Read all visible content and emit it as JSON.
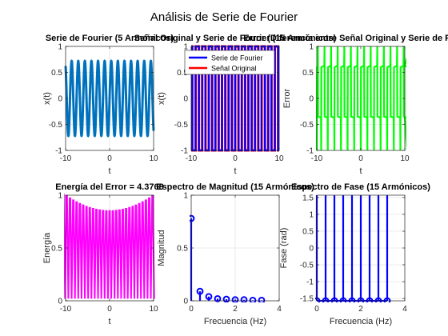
{
  "figure": {
    "title": "Análisis de Serie de Fourier"
  },
  "colors": {
    "blue": "#0072BD",
    "pure_blue": "#0000FF",
    "red": "#FF0000",
    "green": "#00FF00",
    "magenta": "#FF00FF",
    "grid": "#dcdcdc"
  },
  "chart_data": [
    {
      "id": "p1",
      "type": "line",
      "title": "Serie de Fourier (5 Armónicos)",
      "xlabel": "t",
      "ylabel": "x(t)",
      "xlim": [
        -10,
        10
      ],
      "ylim": [
        -1,
        1
      ],
      "xticks": [
        -10,
        0,
        10
      ],
      "yticks": [
        -1,
        -0.5,
        0,
        0.5,
        1
      ],
      "xtick_labels": [
        "-10",
        "0",
        "10"
      ],
      "ytick_labels": [
        "-1",
        "-0.5",
        "0",
        "0.5",
        "1"
      ],
      "grid": true,
      "series": [
        {
          "kind": "sine",
          "color": "#0072BD",
          "amplitude": 0.72,
          "period": 1.5
        }
      ]
    },
    {
      "id": "p2",
      "type": "line",
      "title": "Señal Original y Serie de Fourier (15 Armónicos)",
      "xlabel": "t",
      "ylabel": "x(t)",
      "xlim": [
        -10,
        10
      ],
      "ylim": [
        -1,
        1
      ],
      "xticks": [
        -10,
        0,
        10
      ],
      "yticks": [
        -1,
        -0.5,
        0,
        0.5,
        1
      ],
      "xtick_labels": [
        "-10",
        "0",
        "10"
      ],
      "ytick_labels": [
        "-1",
        "-0.5",
        "0",
        "0.5",
        "1"
      ],
      "grid": true,
      "legend": {
        "position": "top-right",
        "entries": [
          "Serie de Fourier",
          "Señal Original"
        ]
      },
      "series": [
        {
          "name": "Señal Original",
          "kind": "square",
          "color": "#FF0000",
          "amplitude": 1,
          "period": 1.5
        },
        {
          "name": "Serie de Fourier",
          "kind": "square",
          "color": "#0000FF",
          "amplitude": 1,
          "period": 1.5
        }
      ]
    },
    {
      "id": "p3",
      "type": "line",
      "title": "Error (Diferencia entre Señal Original y Serie de Fourier)",
      "xlabel": "t",
      "ylabel": "Error",
      "xlim": [
        -10,
        10
      ],
      "ylim": [
        -1,
        1
      ],
      "xticks": [
        -10,
        0,
        10
      ],
      "yticks": [
        -1,
        -0.5,
        0,
        0.5,
        1
      ],
      "xtick_labels": [
        "-10",
        "0",
        "10"
      ],
      "ytick_labels": [
        "-1",
        "-0.5",
        "0",
        "0.5",
        "1"
      ],
      "grid": true,
      "series": [
        {
          "kind": "error",
          "color": "#00FF00",
          "high": 0.6,
          "low": -0.35,
          "period": 1.5
        }
      ]
    },
    {
      "id": "p4",
      "type": "line",
      "title": "Energía del Error = 4.3768",
      "xlabel": "t",
      "ylabel": "Energía",
      "xlim": [
        -10,
        10
      ],
      "ylim": [
        0,
        1
      ],
      "xticks": [
        -10,
        0,
        10
      ],
      "yticks": [
        0,
        0.5,
        1
      ],
      "xtick_labels": [
        "-10",
        "0",
        "10"
      ],
      "ytick_labels": [
        "0",
        "0.5",
        "1"
      ],
      "grid": true,
      "series": [
        {
          "kind": "energy",
          "color": "#FF00FF",
          "period": 0.75,
          "peak_edge": 1.0,
          "peak_center": 0.85
        }
      ]
    },
    {
      "id": "p5",
      "type": "stem",
      "title": "Espectro de Magnitud (15 Armónicos)",
      "xlabel": "Frecuencia (Hz)",
      "ylabel": "Magnitud",
      "xlim": [
        0,
        4
      ],
      "ylim": [
        0,
        1
      ],
      "xticks": [
        0,
        2,
        4
      ],
      "yticks": [
        0,
        0.5,
        1
      ],
      "xtick_labels": [
        "0",
        "2",
        "4"
      ],
      "ytick_labels": [
        "0",
        "0.5",
        "1"
      ],
      "grid": true,
      "series": [
        {
          "color": "#0000FF",
          "x": [
            0,
            0.4,
            0.8,
            1.2,
            1.6,
            2.0,
            2.4,
            2.8,
            3.2
          ],
          "values": [
            0.78,
            0.09,
            0.04,
            0.02,
            0.015,
            0.01,
            0.01,
            0.005,
            0.005
          ]
        }
      ]
    },
    {
      "id": "p6",
      "type": "stem",
      "title": "Espectro de Fase (15 Armónicos)",
      "xlabel": "Frecuencia (Hz)",
      "ylabel": "Fase (rad)",
      "xlim": [
        0,
        4
      ],
      "ylim": [
        -1.57,
        1.57
      ],
      "xticks": [
        0,
        2,
        4
      ],
      "yticks": [
        -1.5,
        -1,
        -0.5,
        0,
        0.5,
        1,
        1.5
      ],
      "xtick_labels": [
        "0",
        "2",
        "4"
      ],
      "ytick_labels": [
        "-1.5",
        "-1",
        "-0.5",
        "0",
        "0.5",
        "1",
        "1.5"
      ],
      "grid": true,
      "series": [
        {
          "color": "#0000FF",
          "baseline": -1.5708,
          "x": [
            0,
            0.4,
            0.8,
            1.2,
            1.6,
            2.0,
            2.4,
            2.8,
            3.2
          ],
          "values": [
            1.5708,
            1.5708,
            1.5708,
            1.5708,
            1.5708,
            1.5708,
            1.5708,
            1.5708,
            1.5708
          ]
        }
      ]
    }
  ]
}
